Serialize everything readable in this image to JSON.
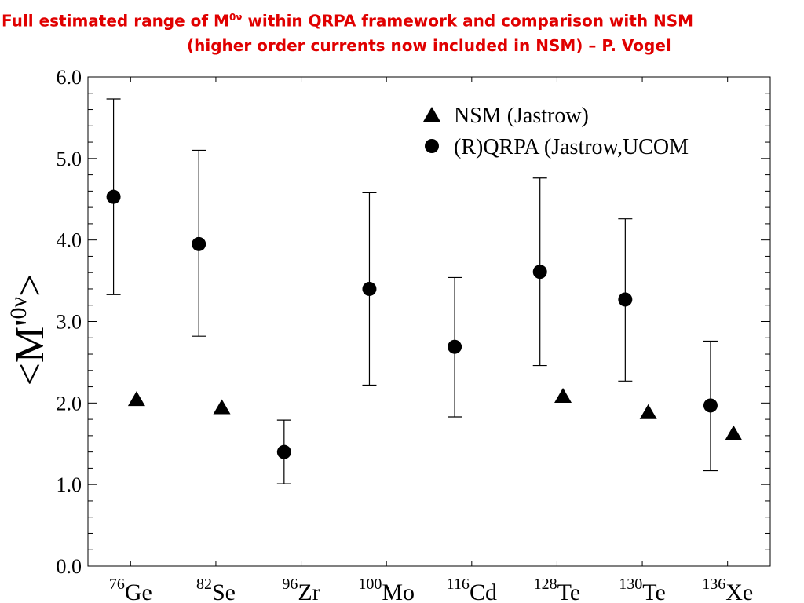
{
  "title": {
    "line1_prefix": "Full estimated range of M",
    "line1_sup": "0ν",
    "line1_suffix": " within QRPA framework and comparison with NSM",
    "line2": "(higher order currents now included in NSM) – P. Vogel",
    "color": "#e00000"
  },
  "chart_data": {
    "type": "scatter",
    "ylabel": "<M'0ν>",
    "ylim": [
      0,
      6
    ],
    "yticks": [
      "0.0",
      "1.0",
      "2.0",
      "3.0",
      "4.0",
      "5.0",
      "6.0"
    ],
    "categories": [
      {
        "sup": "76",
        "el": "Ge"
      },
      {
        "sup": "82",
        "el": "Se"
      },
      {
        "sup": "96",
        "el": "Zr"
      },
      {
        "sup": "100",
        "el": "Mo"
      },
      {
        "sup": "116",
        "el": "Cd"
      },
      {
        "sup": "128",
        "el": "Te"
      },
      {
        "sup": "130",
        "el": "Te"
      },
      {
        "sup": "136",
        "el": "Xe"
      }
    ],
    "legend": {
      "placement": "top-right",
      "nsm": "NSM (Jastrow)",
      "qrpa": "(R)QRPA (Jastrow,UCOM"
    },
    "series": [
      {
        "name": "(R)QRPA (Jastrow,UCOM",
        "marker": "circle",
        "values": [
          4.53,
          3.95,
          1.4,
          3.4,
          2.69,
          3.61,
          3.27,
          1.97
        ],
        "err_low": [
          3.33,
          2.82,
          1.01,
          2.22,
          1.83,
          2.46,
          2.27,
          1.17
        ],
        "err_high": [
          5.73,
          5.1,
          1.79,
          4.58,
          3.54,
          4.76,
          4.26,
          2.76
        ]
      },
      {
        "name": "NSM (Jastrow)",
        "marker": "triangle",
        "values": [
          2.05,
          1.95,
          null,
          null,
          null,
          2.09,
          1.89,
          1.63
        ]
      }
    ]
  }
}
